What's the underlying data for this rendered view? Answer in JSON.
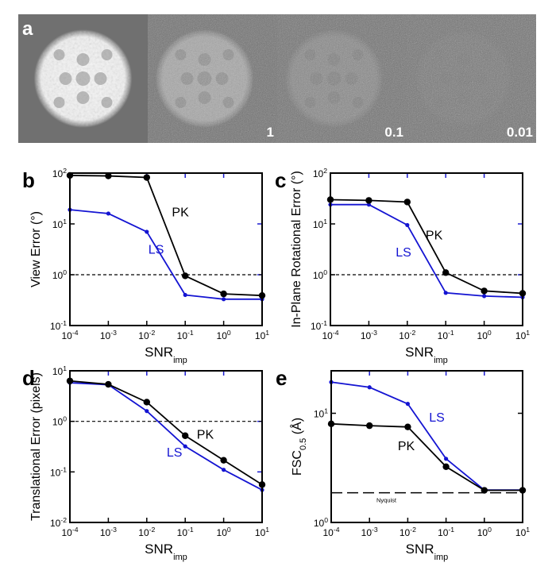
{
  "panel_a": {
    "label": "a",
    "tiles": [
      {
        "snr_label": "",
        "signal": 1.0,
        "noise": 0.0
      },
      {
        "snr_label": "1",
        "signal": 0.45,
        "noise": 0.55
      },
      {
        "snr_label": "0.1",
        "signal": 0.18,
        "noise": 0.6
      },
      {
        "snr_label": "0.01",
        "signal": 0.04,
        "noise": 0.62
      }
    ]
  },
  "colors": {
    "pk": "#000000",
    "ls": "#1414d2",
    "tick": "#1a1ad0"
  },
  "chart_data": [
    {
      "panel": "b",
      "type": "line",
      "ylabel": "View Error (°)",
      "xlabel": "SNR",
      "xlabel_sub": "imp",
      "xscale": "log",
      "yscale": "log",
      "x": [
        0.0001,
        0.001,
        0.01,
        0.1,
        1,
        10
      ],
      "xtick_exps": [
        "-4",
        "-3",
        "-2",
        "-1",
        "0",
        "1"
      ],
      "ylim": [
        0.1,
        100
      ],
      "ytick_exps": [
        "-1",
        "0",
        "1",
        "2"
      ],
      "hline": {
        "y": 1,
        "label": ""
      },
      "series": [
        {
          "name": "PK",
          "values": [
            90,
            88,
            82,
            0.95,
            0.42,
            0.39
          ],
          "label_at": [
            0.045,
            14
          ]
        },
        {
          "name": "LS",
          "values": [
            19,
            16,
            7,
            0.4,
            0.33,
            0.33
          ],
          "label_at": [
            0.011,
            2.6
          ]
        }
      ]
    },
    {
      "panel": "c",
      "type": "line",
      "ylabel": "In-Plane Rotational Error (°)",
      "xlabel": "SNR",
      "xlabel_sub": "imp",
      "xscale": "log",
      "yscale": "log",
      "x": [
        0.0001,
        0.001,
        0.01,
        0.1,
        1,
        10
      ],
      "xtick_exps": [
        "-4",
        "-3",
        "-2",
        "-1",
        "0",
        "1"
      ],
      "ylim": [
        0.1,
        100
      ],
      "ytick_exps": [
        "-1",
        "0",
        "1",
        "2"
      ],
      "hline": {
        "y": 1,
        "label": ""
      },
      "series": [
        {
          "name": "PK",
          "values": [
            30,
            29,
            27,
            1.1,
            0.48,
            0.43
          ],
          "label_at": [
            0.03,
            5
          ]
        },
        {
          "name": "LS",
          "values": [
            24,
            24,
            9.5,
            0.44,
            0.38,
            0.36
          ],
          "label_at": [
            0.005,
            2.3
          ]
        }
      ]
    },
    {
      "panel": "d",
      "type": "line",
      "ylabel": "Translational Error (pixels)",
      "xlabel": "SNR",
      "xlabel_sub": "imp",
      "xscale": "log",
      "yscale": "log",
      "x": [
        0.0001,
        0.001,
        0.01,
        0.1,
        1,
        10
      ],
      "xtick_exps": [
        "-4",
        "-3",
        "-2",
        "-1",
        "0",
        "1"
      ],
      "ylim": [
        0.01,
        10
      ],
      "ytick_exps": [
        "-2",
        "-1",
        "0",
        "1"
      ],
      "hline": {
        "y": 1,
        "label": ""
      },
      "series": [
        {
          "name": "PK",
          "values": [
            6.3,
            5.4,
            2.4,
            0.52,
            0.17,
            0.056
          ],
          "label_at": [
            0.2,
            0.45
          ]
        },
        {
          "name": "LS",
          "values": [
            5.8,
            5.3,
            1.6,
            0.32,
            0.11,
            0.044
          ],
          "label_at": [
            0.033,
            0.2
          ]
        }
      ]
    },
    {
      "panel": "e",
      "type": "line",
      "ylabel": "FSC",
      "ylabel_sub": "0.5",
      "ylabel_tail": " (Å)",
      "xlabel": "SNR",
      "xlabel_sub": "imp",
      "xscale": "log",
      "yscale": "log",
      "x": [
        0.0001,
        0.001,
        0.01,
        0.1,
        1,
        10
      ],
      "xtick_exps": [
        "-4",
        "-3",
        "-2",
        "-1",
        "0",
        "1"
      ],
      "ylim": [
        1,
        24.5
      ],
      "ytick_exps": [
        "0",
        "1"
      ],
      "hline": {
        "y": 1.87,
        "label": "Nyquist"
      },
      "series": [
        {
          "name": "PK",
          "values": [
            8.0,
            7.7,
            7.5,
            3.24,
            1.97,
            1.97
          ],
          "label_at": [
            0.0055,
            4.6
          ]
        },
        {
          "name": "LS",
          "values": [
            19.3,
            17.3,
            12.2,
            3.83,
            1.98,
            1.98
          ],
          "label_at": [
            0.036,
            8.4
          ]
        }
      ]
    }
  ]
}
